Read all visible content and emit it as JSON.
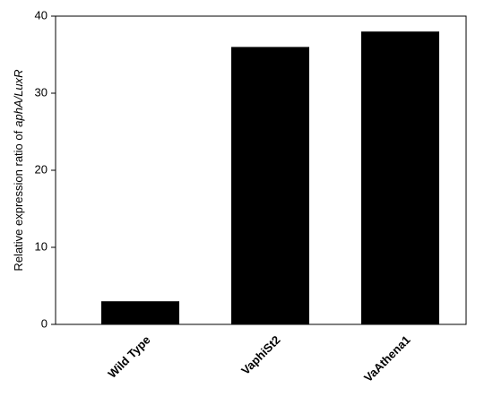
{
  "chart_data": {
    "type": "bar",
    "ylabel": [
      "Relative expression ratio of",
      "aphA/LuxR"
    ],
    "categories": [
      "Wild Type",
      "VaphiSt2",
      "VaAthena1"
    ],
    "values": [
      3,
      36,
      38
    ],
    "color": "#000000",
    "ylim": [
      0,
      40
    ],
    "yticks": [
      0,
      10,
      20,
      30,
      40
    ],
    "grid": false
  }
}
